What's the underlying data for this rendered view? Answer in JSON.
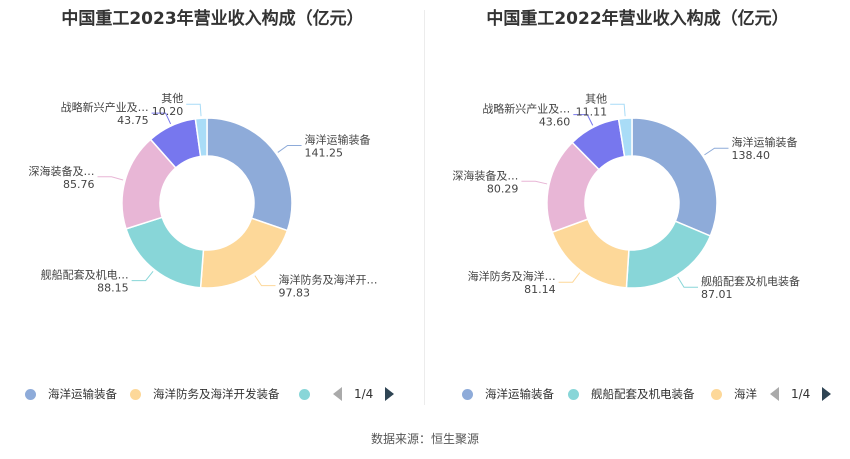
{
  "source": "数据来源：恒生聚源",
  "chart_data": [
    {
      "type": "pie",
      "title": "中国重工2023年营业收入构成（亿元）",
      "unit": "亿元",
      "slices": [
        {
          "name": "海洋运输装备",
          "label": "海洋运输装备",
          "value": 141.25,
          "value_text": "141.25",
          "color": "#8eabd9"
        },
        {
          "name": "海洋防务及海洋开发装备",
          "label": "海洋防务及海洋开…",
          "value": 97.83,
          "value_text": "97.83",
          "color": "#fdd899"
        },
        {
          "name": "舰船配套及机电装备",
          "label": "舰船配套及机电…",
          "value": 88.15,
          "value_text": "88.15",
          "color": "#88d6d8"
        },
        {
          "name": "深海装备及舰船修理改装",
          "label": "深海装备及…",
          "value": 85.76,
          "value_text": "85.76",
          "color": "#e8b6d6"
        },
        {
          "name": "战略新兴产业及其他",
          "label": "战略新兴产业及…",
          "value": 43.75,
          "value_text": "43.75",
          "color": "#7777ee"
        },
        {
          "name": "其他",
          "label": "其他",
          "value": 10.2,
          "value_text": "10.20",
          "color": "#a9dcf7"
        }
      ],
      "legend": {
        "items": [
          {
            "label": "海洋运输装备",
            "color": "#8eabd9"
          },
          {
            "label": "海洋防务及海洋开发装备",
            "color": "#fdd899"
          },
          {
            "label": "",
            "color": "#88d6d8"
          }
        ],
        "page": "1/4"
      }
    },
    {
      "type": "pie",
      "title": "中国重工2022年营业收入构成（亿元）",
      "unit": "亿元",
      "slices": [
        {
          "name": "海洋运输装备",
          "label": "海洋运输装备",
          "value": 138.4,
          "value_text": "138.40",
          "color": "#8eabd9"
        },
        {
          "name": "舰船配套及机电装备",
          "label": "舰船配套及机电装备",
          "value": 87.01,
          "value_text": "87.01",
          "color": "#88d6d8"
        },
        {
          "name": "海洋防务及海洋开发装备",
          "label": "海洋防务及海洋…",
          "value": 81.14,
          "value_text": "81.14",
          "color": "#fdd899"
        },
        {
          "name": "深海装备及舰船修理改装",
          "label": "深海装备及…",
          "value": 80.29,
          "value_text": "80.29",
          "color": "#e8b6d6"
        },
        {
          "name": "战略新兴产业及其他",
          "label": "战略新兴产业及…",
          "value": 43.6,
          "value_text": "43.60",
          "color": "#7777ee"
        },
        {
          "name": "其他",
          "label": "其他",
          "value": 11.11,
          "value_text": "11.11",
          "color": "#a9dcf7"
        }
      ],
      "legend": {
        "items": [
          {
            "label": "海洋运输装备",
            "color": "#8eabd9"
          },
          {
            "label": "舰船配套及机电装备",
            "color": "#88d6d8"
          },
          {
            "label": "海洋",
            "color": "#fdd899"
          }
        ],
        "page": "1/4"
      }
    }
  ]
}
